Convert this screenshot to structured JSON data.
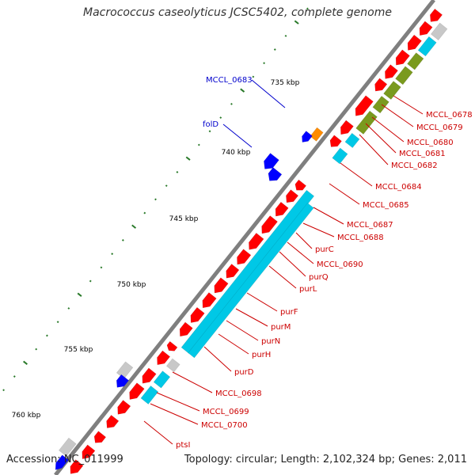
{
  "title": "Macrococcus caseolyticus JCSC5402, complete genome",
  "footer": {
    "accession": "Accession: NC_011999",
    "topology": "Topology: circular; Length: 2,102,324 bp; Genes: 2,011"
  },
  "scale_labels": [
    "735 kbp",
    "740 kbp",
    "745 kbp",
    "750 kbp",
    "755 kbp",
    "760 kbp"
  ],
  "right_genes": [
    "MCCL_0678",
    "MCCL_0679",
    "MCCL_0680",
    "MCCL_0681",
    "MCCL_0682",
    "MCCL_0684",
    "MCCL_0685",
    "MCCL_0687",
    "MCCL_0688",
    "purC",
    "MCCL_0690",
    "purQ",
    "purL",
    "purF",
    "purM",
    "purN",
    "purH",
    "purD",
    "MCCL_0698",
    "MCCL_0699",
    "MCCL_0700",
    "ptsI"
  ],
  "left_genes": [
    "MCCL_0683",
    "folD"
  ],
  "colors": {
    "backbone": "#7f7f7f",
    "cds_forward": "#ff0000",
    "cds_reverse": "#0000ff",
    "cog_cyan": "#00c8e6",
    "cog_olive": "#7a9a1e",
    "cog_orange": "#ff8c00",
    "cog_gray": "#c8c8c8",
    "label_right": "#cc0000",
    "label_left": "#0000cc",
    "tick_major": "#2a7a2a"
  }
}
